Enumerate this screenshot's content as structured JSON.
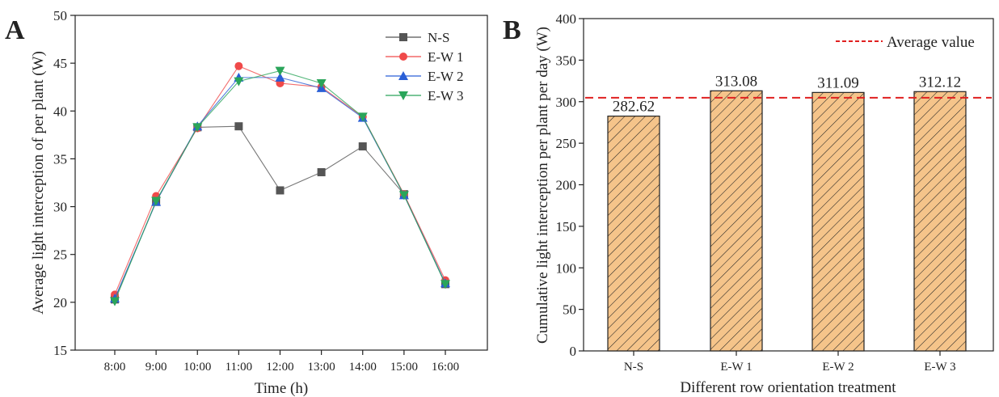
{
  "chart_data": [
    {
      "panel_label": "A",
      "type": "line",
      "xlabel": "Time (h)",
      "ylabel": "Average light interception of per plant (W)",
      "categories": [
        "8:00",
        "9:00",
        "10:00",
        "11:00",
        "12:00",
        "13:00",
        "14:00",
        "15:00",
        "16:00"
      ],
      "ylim": [
        15,
        50
      ],
      "yticks": [
        15,
        20,
        25,
        30,
        35,
        40,
        45,
        50
      ],
      "legend_position": "top-right",
      "grid": false,
      "series": [
        {
          "name": "N-S",
          "marker": "square",
          "color": "#555555",
          "values": [
            20.3,
            30.5,
            38.3,
            38.4,
            31.7,
            33.6,
            36.3,
            31.3,
            21.9
          ]
        },
        {
          "name": "E-W 1",
          "marker": "circle",
          "color": "#f04a4a",
          "values": [
            20.8,
            31.1,
            38.2,
            44.7,
            42.9,
            42.5,
            39.4,
            31.3,
            22.3
          ]
        },
        {
          "name": "E-W 2",
          "marker": "triangle-up",
          "color": "#2a5fd6",
          "values": [
            20.4,
            30.5,
            38.4,
            43.5,
            43.5,
            42.4,
            39.3,
            31.2,
            22.0
          ]
        },
        {
          "name": "E-W 3",
          "marker": "triangle-down",
          "color": "#2aa55a",
          "values": [
            20.1,
            30.6,
            38.3,
            43.1,
            44.2,
            42.9,
            39.4,
            31.2,
            21.9
          ]
        }
      ]
    },
    {
      "panel_label": "B",
      "type": "bar",
      "xlabel": "Different row orientation treatment",
      "ylabel": "Cumulative light interception per plant per day (W)",
      "categories": [
        "N-S",
        "E-W 1",
        "E-W 2",
        "E-W 3"
      ],
      "values": [
        282.62,
        313.08,
        311.09,
        312.12
      ],
      "value_labels": [
        "282.62",
        "313.08",
        "311.09",
        "312.12"
      ],
      "ylim": [
        0,
        400
      ],
      "yticks": [
        0,
        50,
        100,
        150,
        200,
        250,
        300,
        350,
        400
      ],
      "bar_fill": "#f5c48a",
      "bar_hatch": "diagonal",
      "average_line": {
        "label": "Average value",
        "value": 304.73,
        "color": "#e02020",
        "style": "dashed"
      },
      "legend_position": "top-right",
      "grid": false
    }
  ]
}
